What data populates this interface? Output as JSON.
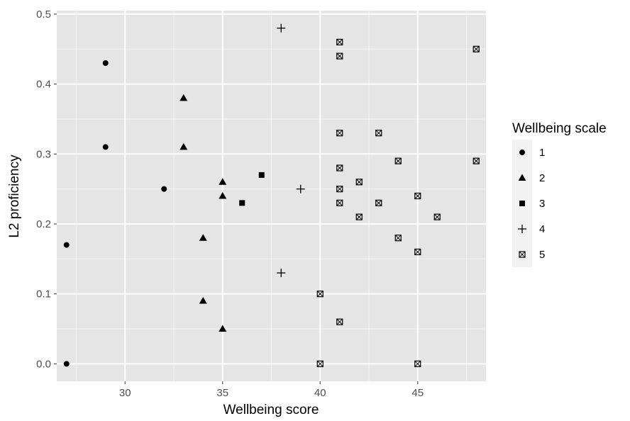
{
  "chart_data": {
    "type": "scatter",
    "xlabel": "Wellbeing score",
    "ylabel": "L2 proficiency",
    "xlim": [
      26.5,
      48.5
    ],
    "ylim": [
      -0.025,
      0.505
    ],
    "x_ticks": [
      30,
      35,
      40,
      45
    ],
    "x_tick_labels": [
      "30",
      "35",
      "40",
      "45"
    ],
    "y_ticks": [
      0.0,
      0.1,
      0.2,
      0.3,
      0.4,
      0.5
    ],
    "y_tick_labels": [
      "0.0",
      "0.1",
      "0.2",
      "0.3",
      "0.4",
      "0.5"
    ],
    "grid": true,
    "panel_background": "#e5e5e5",
    "grid_color": "#ffffff",
    "point_color": "#000000",
    "legend": {
      "title": "Wellbeing scale",
      "position": "right"
    },
    "series": [
      {
        "name": "1",
        "shape": "circle",
        "points": [
          [
            27,
            0.17
          ],
          [
            27,
            0.0
          ],
          [
            29,
            0.43
          ],
          [
            29,
            0.31
          ],
          [
            32,
            0.25
          ]
        ]
      },
      {
        "name": "2",
        "shape": "triangle",
        "points": [
          [
            33,
            0.38
          ],
          [
            33,
            0.31
          ],
          [
            34,
            0.18
          ],
          [
            34,
            0.09
          ],
          [
            35,
            0.26
          ],
          [
            35,
            0.24
          ],
          [
            35,
            0.05
          ]
        ]
      },
      {
        "name": "3",
        "shape": "square",
        "points": [
          [
            36,
            0.23
          ],
          [
            37,
            0.27
          ]
        ]
      },
      {
        "name": "4",
        "shape": "plus",
        "points": [
          [
            38,
            0.48
          ],
          [
            38,
            0.13
          ],
          [
            39,
            0.25
          ]
        ]
      },
      {
        "name": "5",
        "shape": "square-cross",
        "points": [
          [
            40,
            0.1
          ],
          [
            40,
            0.0
          ],
          [
            41,
            0.46
          ],
          [
            41,
            0.44
          ],
          [
            41,
            0.33
          ],
          [
            41,
            0.28
          ],
          [
            41,
            0.25
          ],
          [
            41,
            0.23
          ],
          [
            41,
            0.06
          ],
          [
            42,
            0.26
          ],
          [
            42,
            0.21
          ],
          [
            43,
            0.33
          ],
          [
            43,
            0.23
          ],
          [
            44,
            0.29
          ],
          [
            44,
            0.18
          ],
          [
            45,
            0.24
          ],
          [
            45,
            0.16
          ],
          [
            45,
            0.0
          ],
          [
            46,
            0.21
          ],
          [
            48,
            0.45
          ],
          [
            48,
            0.29
          ]
        ]
      }
    ]
  }
}
